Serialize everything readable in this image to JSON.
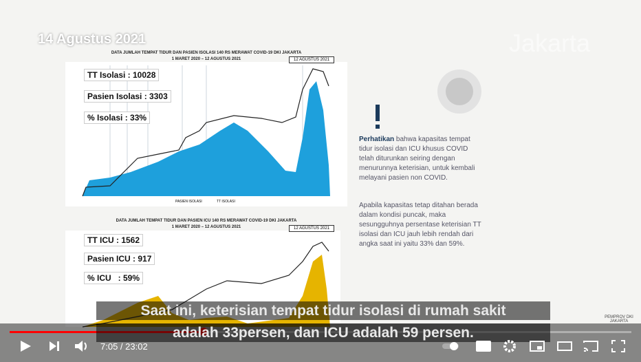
{
  "date_stamp": "14 Agustus 2021",
  "watermark": "Jakarta",
  "chart1": {
    "title": "DATA JUMLAH TEMPAT TIDUR DAN PASIEN ISOLASI 140 RS MERAWAT COVID-19 DKI JAKARTA",
    "subtitle": "1 MARET 2020 – 12 AGUSTUS 2021",
    "date_box": "12 AGUSTUS 2021",
    "stats": [
      "TT Isolasi : 10028",
      "Pasien Isolasi : 3303",
      "% Isolasi : 33%"
    ],
    "legend": [
      "PASIEN ISOLASI",
      "TT ISOLASI"
    ]
  },
  "chart2": {
    "title": "DATA JUMLAH TEMPAT TIDUR DAN PASIEN ICU 140 RS MERAWAT COVID-19 DKI JAKARTA",
    "subtitle": "1 MARET 2020 – 12 AGUSTUS 2021",
    "date_box": "12 AGUSTUS 2021",
    "stats": [
      "TT ICU : 1562",
      "Pasien ICU : 917",
      "% ICU   : 59%"
    ]
  },
  "notice": {
    "highlight": "Perhatikan",
    "para1": " bahwa kapasitas tempat tidur isolasi dan ICU khusus COVID telah diturunkan seiring dengan menurunnya keterisian, untuk kembali melayani pasien non COVID.",
    "para2": "Apabila kapasitas tetap ditahan berada dalam kondisi puncak, maka sesungguhnya persentase keterisian TT isolasi dan ICU jauh lebih rendah dari angka saat ini yaitu 33% dan 59%."
  },
  "logo": "PEMPROV DKI JAKARTA",
  "captions": [
    "Saat ini, keterisian tempat tidur isolasi di rumah sakit",
    "adalah 33persen, dan ICU adalah 59 persen."
  ],
  "player": {
    "time": "7:05 / 23:02"
  }
}
